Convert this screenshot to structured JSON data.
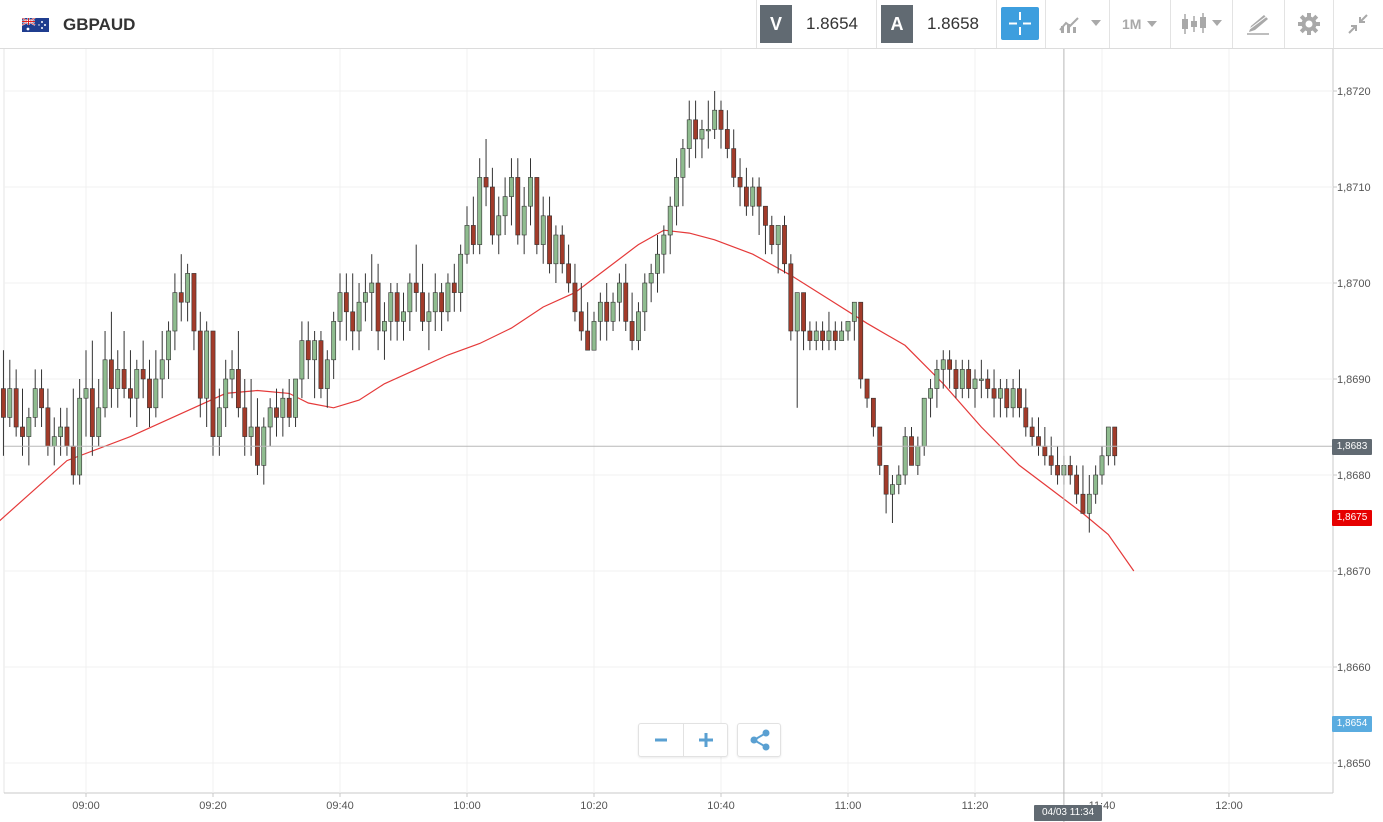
{
  "header": {
    "symbol": "GBPAUD",
    "flag_icon": "gb-au-flag-icon",
    "bid_letter": "V",
    "bid_value": "1.8654",
    "ask_letter": "A",
    "ask_value": "1.8658",
    "timeframe": "1M",
    "icons": [
      "crosshair-icon",
      "chart-type-icon",
      "candlestick-icon",
      "drawing-tools-icon",
      "gear-icon",
      "collapse-icon"
    ]
  },
  "chart_data": {
    "type": "candlestick",
    "title": "",
    "indicator": "moving average",
    "colors": {
      "up": "#8fbc8f",
      "down": "#a23b2a",
      "ma": "#e53a3a",
      "accent": "#3d9ede"
    },
    "y_ticks": [
      "1,8650",
      "1,8660",
      "1,8670",
      "1,8680",
      "1,8690",
      "1,8700",
      "1,8710",
      "1,8720"
    ],
    "x_ticks": [
      "09:00",
      "09:20",
      "09:40",
      "10:00",
      "10:20",
      "10:40",
      "11:00",
      "11:20",
      "11:40",
      "12:00"
    ],
    "ylim": [
      1.8647,
      1.8724
    ],
    "price_labels": {
      "crosshair": "1,8683",
      "ma_last": "1,8675",
      "last_price": "1,8654"
    },
    "cursor_time": "04/03 11:34",
    "ma": [
      [
        -1,
        1.8675
      ],
      [
        10,
        1.86815
      ],
      [
        20,
        1.8684
      ],
      [
        30,
        1.8687
      ],
      [
        35,
        1.86885
      ],
      [
        40,
        1.86888
      ],
      [
        45,
        1.86885
      ],
      [
        48,
        1.86875
      ],
      [
        52,
        1.8687
      ],
      [
        56,
        1.86878
      ],
      [
        60,
        1.86895
      ],
      [
        65,
        1.8691
      ],
      [
        70,
        1.86925
      ],
      [
        75,
        1.86937
      ],
      [
        80,
        1.86953
      ],
      [
        85,
        1.86975
      ],
      [
        90,
        1.8699
      ],
      [
        95,
        1.87015
      ],
      [
        100,
        1.8704
      ],
      [
        104,
        1.87055
      ],
      [
        108,
        1.87052
      ],
      [
        112,
        1.87045
      ],
      [
        118,
        1.8703
      ],
      [
        124,
        1.87008
      ],
      [
        130,
        1.86983
      ],
      [
        136,
        1.86958
      ],
      [
        142,
        1.86935
      ],
      [
        148,
        1.86895
      ],
      [
        154,
        1.8685
      ],
      [
        160,
        1.8681
      ],
      [
        165,
        1.86785
      ],
      [
        170,
        1.8676
      ],
      [
        174,
        1.86738
      ],
      [
        178,
        1.867
      ]
    ],
    "candles": [
      [
        1.8689,
        1.8693,
        1.8682,
        1.8686
      ],
      [
        1.8686,
        1.8692,
        1.8685,
        1.8689
      ],
      [
        1.8689,
        1.8691,
        1.8684,
        1.8685
      ],
      [
        1.8685,
        1.8689,
        1.8682,
        1.8684
      ],
      [
        1.8684,
        1.8687,
        1.8681,
        1.8686
      ],
      [
        1.8686,
        1.8691,
        1.8685,
        1.8689
      ],
      [
        1.8689,
        1.8691,
        1.8685,
        1.8687
      ],
      [
        1.8687,
        1.8689,
        1.8682,
        1.8683
      ],
      [
        1.8683,
        1.8686,
        1.8681,
        1.8684
      ],
      [
        1.8684,
        1.8687,
        1.8682,
        1.8685
      ],
      [
        1.8685,
        1.8687,
        1.8682,
        1.8683
      ],
      [
        1.8683,
        1.8689,
        1.8679,
        1.868
      ],
      [
        1.868,
        1.869,
        1.8679,
        1.8688
      ],
      [
        1.8688,
        1.8693,
        1.8684,
        1.8689
      ],
      [
        1.8689,
        1.8694,
        1.8682,
        1.8684
      ],
      [
        1.8684,
        1.869,
        1.8683,
        1.8687
      ],
      [
        1.8687,
        1.8695,
        1.8686,
        1.8692
      ],
      [
        1.8692,
        1.8697,
        1.8687,
        1.8689
      ],
      [
        1.8689,
        1.8693,
        1.8687,
        1.8691
      ],
      [
        1.8691,
        1.8695,
        1.8688,
        1.8689
      ],
      [
        1.8689,
        1.8693,
        1.8686,
        1.8688
      ],
      [
        1.8688,
        1.8692,
        1.8685,
        1.8691
      ],
      [
        1.8691,
        1.8694,
        1.8688,
        1.869
      ],
      [
        1.869,
        1.8692,
        1.8685,
        1.8687
      ],
      [
        1.8687,
        1.8693,
        1.8686,
        1.869
      ],
      [
        1.869,
        1.8695,
        1.8688,
        1.8692
      ],
      [
        1.8692,
        1.8696,
        1.869,
        1.8695
      ],
      [
        1.8695,
        1.8701,
        1.8693,
        1.8699
      ],
      [
        1.8699,
        1.8703,
        1.8696,
        1.8698
      ],
      [
        1.8698,
        1.8702,
        1.8696,
        1.8701
      ],
      [
        1.8701,
        1.8701,
        1.8693,
        1.8695
      ],
      [
        1.8695,
        1.8697,
        1.8686,
        1.8688
      ],
      [
        1.8688,
        1.8696,
        1.8685,
        1.8695
      ],
      [
        1.8695,
        1.8695,
        1.8682,
        1.8684
      ],
      [
        1.8684,
        1.8689,
        1.8682,
        1.8687
      ],
      [
        1.8687,
        1.8692,
        1.8685,
        1.869
      ],
      [
        1.869,
        1.8693,
        1.8688,
        1.8691
      ],
      [
        1.8691,
        1.8695,
        1.8686,
        1.8687
      ],
      [
        1.8687,
        1.869,
        1.8682,
        1.8684
      ],
      [
        1.8684,
        1.869,
        1.8682,
        1.8685
      ],
      [
        1.8685,
        1.8688,
        1.868,
        1.8681
      ],
      [
        1.8681,
        1.8686,
        1.8679,
        1.8685
      ],
      [
        1.8685,
        1.8688,
        1.8683,
        1.8687
      ],
      [
        1.8687,
        1.8689,
        1.8684,
        1.8686
      ],
      [
        1.8686,
        1.8689,
        1.8684,
        1.8688
      ],
      [
        1.8688,
        1.869,
        1.8685,
        1.8686
      ],
      [
        1.8686,
        1.869,
        1.8685,
        1.869
      ],
      [
        1.869,
        1.8696,
        1.8688,
        1.8694
      ],
      [
        1.8694,
        1.8696,
        1.869,
        1.8692
      ],
      [
        1.8692,
        1.8695,
        1.8688,
        1.8694
      ],
      [
        1.8694,
        1.8695,
        1.8688,
        1.8689
      ],
      [
        1.8689,
        1.8693,
        1.8687,
        1.8692
      ],
      [
        1.8692,
        1.8697,
        1.869,
        1.8696
      ],
      [
        1.8696,
        1.8701,
        1.8694,
        1.8699
      ],
      [
        1.8699,
        1.8701,
        1.8694,
        1.8697
      ],
      [
        1.8697,
        1.8701,
        1.8693,
        1.8695
      ],
      [
        1.8695,
        1.87,
        1.8693,
        1.8698
      ],
      [
        1.8698,
        1.8701,
        1.8696,
        1.8699
      ],
      [
        1.8699,
        1.8703,
        1.8695,
        1.87
      ],
      [
        1.87,
        1.8702,
        1.8693,
        1.8695
      ],
      [
        1.8695,
        1.8698,
        1.8692,
        1.8696
      ],
      [
        1.8696,
        1.87,
        1.8694,
        1.8699
      ],
      [
        1.8699,
        1.87,
        1.8694,
        1.8696
      ],
      [
        1.8696,
        1.8699,
        1.8694,
        1.8697
      ],
      [
        1.8697,
        1.8701,
        1.8695,
        1.87
      ],
      [
        1.87,
        1.8704,
        1.8697,
        1.8699
      ],
      [
        1.8699,
        1.8702,
        1.8695,
        1.8696
      ],
      [
        1.8696,
        1.8699,
        1.8693,
        1.8697
      ],
      [
        1.8697,
        1.8701,
        1.8695,
        1.8699
      ],
      [
        1.8699,
        1.87,
        1.8695,
        1.8697
      ],
      [
        1.8697,
        1.8701,
        1.8696,
        1.87
      ],
      [
        1.87,
        1.8702,
        1.8697,
        1.8699
      ],
      [
        1.8699,
        1.8704,
        1.8697,
        1.8703
      ],
      [
        1.8703,
        1.8708,
        1.8702,
        1.8706
      ],
      [
        1.8706,
        1.8709,
        1.8703,
        1.8704
      ],
      [
        1.8704,
        1.8713,
        1.8703,
        1.8711
      ],
      [
        1.8711,
        1.8715,
        1.8708,
        1.871
      ],
      [
        1.871,
        1.8712,
        1.8704,
        1.8705
      ],
      [
        1.8705,
        1.8709,
        1.8703,
        1.8707
      ],
      [
        1.8707,
        1.8711,
        1.8705,
        1.8709
      ],
      [
        1.8709,
        1.8713,
        1.8706,
        1.8711
      ],
      [
        1.8711,
        1.8713,
        1.8704,
        1.8705
      ],
      [
        1.8705,
        1.871,
        1.8703,
        1.8708
      ],
      [
        1.8708,
        1.8713,
        1.8706,
        1.8711
      ],
      [
        1.8711,
        1.8711,
        1.8703,
        1.8704
      ],
      [
        1.8704,
        1.8709,
        1.8702,
        1.8707
      ],
      [
        1.8707,
        1.8709,
        1.8701,
        1.8702
      ],
      [
        1.8702,
        1.8706,
        1.87,
        1.8705
      ],
      [
        1.8705,
        1.8706,
        1.8701,
        1.8702
      ],
      [
        1.8702,
        1.8704,
        1.8699,
        1.87
      ],
      [
        1.87,
        1.8702,
        1.8696,
        1.8697
      ],
      [
        1.8697,
        1.87,
        1.8694,
        1.8695
      ],
      [
        1.8695,
        1.8698,
        1.8693,
        1.8693
      ],
      [
        1.8693,
        1.8697,
        1.8693,
        1.8696
      ],
      [
        1.8696,
        1.8699,
        1.8694,
        1.8698
      ],
      [
        1.8698,
        1.87,
        1.8694,
        1.8696
      ],
      [
        1.8696,
        1.8699,
        1.8695,
        1.8698
      ],
      [
        1.8698,
        1.8701,
        1.8696,
        1.87
      ],
      [
        1.87,
        1.8702,
        1.8695,
        1.8696
      ],
      [
        1.8696,
        1.8699,
        1.8693,
        1.8694
      ],
      [
        1.8694,
        1.8698,
        1.8693,
        1.8697
      ],
      [
        1.8697,
        1.8701,
        1.8695,
        1.87
      ],
      [
        1.87,
        1.8702,
        1.8698,
        1.8701
      ],
      [
        1.8701,
        1.8705,
        1.8699,
        1.8703
      ],
      [
        1.8703,
        1.8706,
        1.8701,
        1.8705
      ],
      [
        1.8705,
        1.8709,
        1.8703,
        1.8708
      ],
      [
        1.8708,
        1.8713,
        1.8706,
        1.8711
      ],
      [
        1.8711,
        1.8715,
        1.8708,
        1.8714
      ],
      [
        1.8714,
        1.8719,
        1.8712,
        1.8717
      ],
      [
        1.8717,
        1.8719,
        1.8713,
        1.8715
      ],
      [
        1.8715,
        1.8717,
        1.8713,
        1.8716
      ],
      [
        1.8716,
        1.8719,
        1.8714,
        1.8716
      ],
      [
        1.8716,
        1.872,
        1.8715,
        1.8718
      ],
      [
        1.8718,
        1.8719,
        1.8714,
        1.8716
      ],
      [
        1.8716,
        1.8718,
        1.8713,
        1.8714
      ],
      [
        1.8714,
        1.8716,
        1.871,
        1.8711
      ],
      [
        1.8711,
        1.8713,
        1.8708,
        1.871
      ],
      [
        1.871,
        1.8712,
        1.8707,
        1.8708
      ],
      [
        1.8708,
        1.8711,
        1.8707,
        1.871
      ],
      [
        1.871,
        1.8711,
        1.8705,
        1.8708
      ],
      [
        1.8708,
        1.8708,
        1.8703,
        1.8706
      ],
      [
        1.8706,
        1.8707,
        1.8703,
        1.8704
      ],
      [
        1.8704,
        1.8706,
        1.8701,
        1.8706
      ],
      [
        1.8706,
        1.8707,
        1.8701,
        1.8702
      ],
      [
        1.8702,
        1.8703,
        1.8694,
        1.8695
      ],
      [
        1.8695,
        1.8699,
        1.8687,
        1.8699
      ],
      [
        1.8699,
        1.8699,
        1.8693,
        1.8695
      ],
      [
        1.8695,
        1.8696,
        1.8693,
        1.8694
      ],
      [
        1.8694,
        1.8696,
        1.8693,
        1.8695
      ],
      [
        1.8695,
        1.8696,
        1.8693,
        1.8694
      ],
      [
        1.8694,
        1.8697,
        1.8693,
        1.8695
      ],
      [
        1.8695,
        1.8696,
        1.8693,
        1.8694
      ],
      [
        1.8694,
        1.8696,
        1.8694,
        1.8695
      ],
      [
        1.8695,
        1.8696,
        1.8694,
        1.8696
      ],
      [
        1.8696,
        1.8698,
        1.8694,
        1.8698
      ],
      [
        1.8698,
        1.8698,
        1.8689,
        1.869
      ],
      [
        1.869,
        1.869,
        1.8687,
        1.8688
      ],
      [
        1.8688,
        1.8688,
        1.8684,
        1.8685
      ],
      [
        1.8685,
        1.8685,
        1.868,
        1.8681
      ],
      [
        1.8681,
        1.8681,
        1.8676,
        1.8678
      ],
      [
        1.8678,
        1.868,
        1.8675,
        1.8679
      ],
      [
        1.8679,
        1.8681,
        1.8678,
        1.868
      ],
      [
        1.868,
        1.8685,
        1.8679,
        1.8684
      ],
      [
        1.8684,
        1.8685,
        1.8681,
        1.8681
      ],
      [
        1.8681,
        1.8684,
        1.868,
        1.8683
      ],
      [
        1.8683,
        1.8688,
        1.8682,
        1.8688
      ],
      [
        1.8688,
        1.869,
        1.8686,
        1.8689
      ],
      [
        1.8689,
        1.8692,
        1.8687,
        1.8691
      ],
      [
        1.8691,
        1.8693,
        1.8689,
        1.8692
      ],
      [
        1.8692,
        1.8693,
        1.8689,
        1.8691
      ],
      [
        1.8691,
        1.8692,
        1.8688,
        1.8689
      ],
      [
        1.8689,
        1.8692,
        1.8688,
        1.8691
      ],
      [
        1.8691,
        1.8692,
        1.8688,
        1.8689
      ],
      [
        1.8689,
        1.8691,
        1.8687,
        1.869
      ],
      [
        1.869,
        1.8692,
        1.8688,
        1.869
      ],
      [
        1.869,
        1.8691,
        1.8688,
        1.8689
      ],
      [
        1.8689,
        1.8691,
        1.8686,
        1.8688
      ],
      [
        1.8688,
        1.869,
        1.8686,
        1.8689
      ],
      [
        1.8689,
        1.869,
        1.8686,
        1.8687
      ],
      [
        1.8687,
        1.869,
        1.8686,
        1.8689
      ],
      [
        1.8689,
        1.8691,
        1.8686,
        1.8687
      ],
      [
        1.8687,
        1.8689,
        1.8684,
        1.8685
      ],
      [
        1.8685,
        1.8686,
        1.8683,
        1.8684
      ],
      [
        1.8684,
        1.8686,
        1.8682,
        1.8683
      ],
      [
        1.8683,
        1.8685,
        1.8681,
        1.8682
      ],
      [
        1.8682,
        1.8684,
        1.868,
        1.8681
      ],
      [
        1.8681,
        1.8683,
        1.8679,
        1.868
      ],
      [
        1.868,
        1.8682,
        1.8679,
        1.8681
      ],
      [
        1.8681,
        1.8682,
        1.8679,
        1.868
      ],
      [
        1.868,
        1.8681,
        1.8677,
        1.8678
      ],
      [
        1.8678,
        1.8681,
        1.8676,
        1.8676
      ],
      [
        1.8676,
        1.868,
        1.8674,
        1.8678
      ],
      [
        1.8678,
        1.8681,
        1.8677,
        1.868
      ],
      [
        1.868,
        1.8683,
        1.8679,
        1.8682
      ],
      [
        1.8682,
        1.8685,
        1.8681,
        1.8685
      ],
      [
        1.8685,
        1.8685,
        1.8681,
        1.8682
      ]
    ]
  }
}
